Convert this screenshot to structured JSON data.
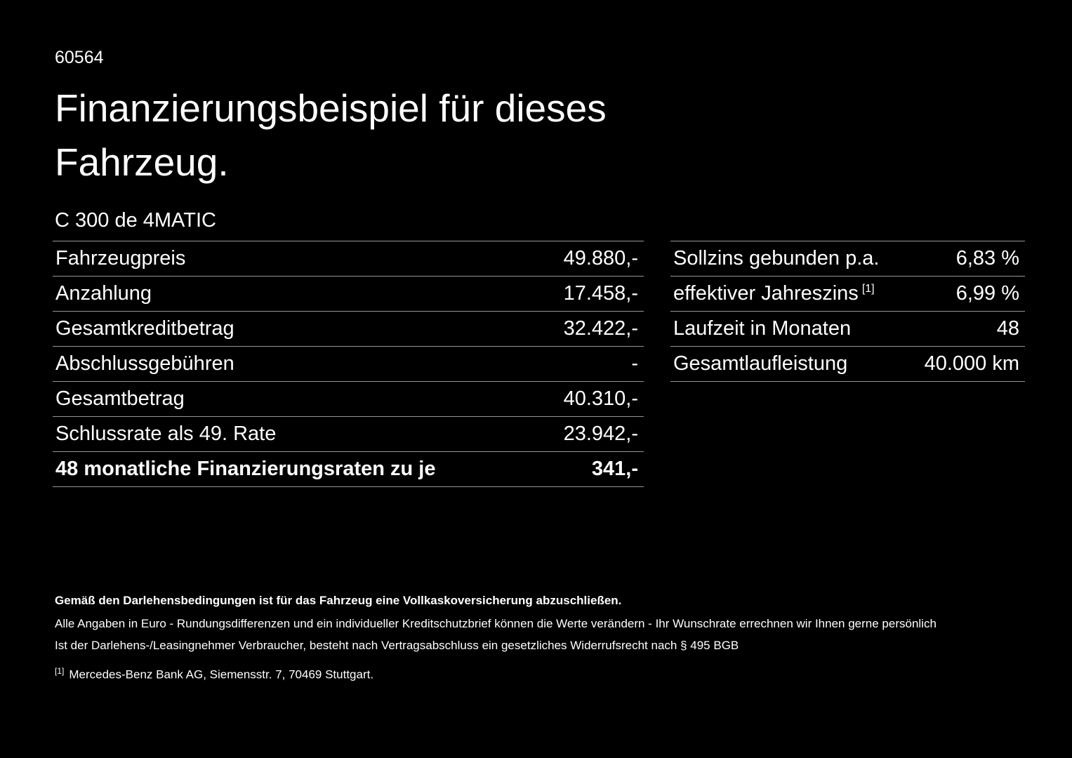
{
  "page": {
    "id": "60564",
    "title_line1": "Finanzierungsbeispiel für dieses",
    "title_line2": "Fahrzeug.",
    "model": "C 300 de 4MATIC"
  },
  "left_table": {
    "rows": [
      {
        "label": "Fahrzeugpreis",
        "value": "49.880,-"
      },
      {
        "label": "Anzahlung",
        "value": "17.458,-"
      },
      {
        "label": "Gesamtkreditbetrag",
        "value": "32.422,-"
      },
      {
        "label": "Abschlussgebühren",
        "value": "-"
      },
      {
        "label": "Gesamtbetrag",
        "value": "40.310,-"
      },
      {
        "label": "Schlussrate als 49. Rate",
        "value": "23.942,-"
      },
      {
        "label": "48 monatliche Finanzierungsraten zu je",
        "value": "341,-"
      }
    ]
  },
  "right_table": {
    "rows": [
      {
        "label": "Sollzins gebunden p.a.",
        "sup": "",
        "value": "6,83 %"
      },
      {
        "label": "effektiver Jahreszins",
        "sup": "[1]",
        "value": "6,99 %"
      },
      {
        "label": "Laufzeit in Monaten",
        "sup": "",
        "value": "48"
      },
      {
        "label": "Gesamtlaufleistung",
        "sup": "",
        "value": "40.000 km"
      }
    ]
  },
  "footer": {
    "bold_note": "Gemäß den Darlehensbedingungen ist für das Fahrzeug eine Vollkaskoversicherung abzuschließen.",
    "note1": "Alle Angaben in Euro - Rundungsdifferenzen und ein individueller Kreditschutzbrief können die Werte verändern - Ihr Wunschrate errechnen wir Ihnen gerne persönlich",
    "note2": "Ist der Darlehens-/Leasingnehmer Verbraucher, besteht nach Vertragsabschluss ein gesetzliches Widerrufsrecht nach § 495 BGB",
    "footnote_marker": "[1]",
    "footnote_text": "Mercedes-Benz Bank AG, Siemensstr. 7, 70469 Stuttgart."
  },
  "colors": {
    "background": "#000000",
    "text": "#ffffff",
    "divider": "#969696"
  }
}
